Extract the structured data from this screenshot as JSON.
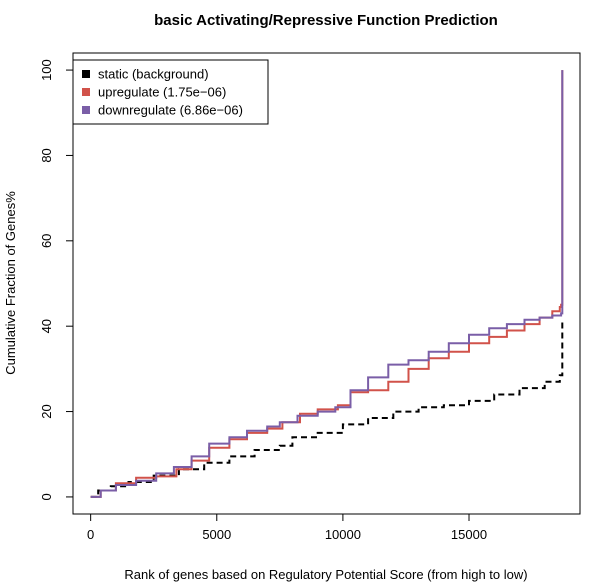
{
  "chart_data": {
    "type": "line",
    "title": "basic Activating/Repressive Function Prediction",
    "xlabel": "Rank of genes based on Regulatory Potential Score (from high to low)",
    "ylabel": "Cumulative Fraction of Genes%",
    "xlim": [
      -700,
      19400
    ],
    "ylim": [
      -4,
      104
    ],
    "x_ticks": [
      0,
      5000,
      10000,
      15000
    ],
    "y_ticks": [
      0,
      20,
      40,
      60,
      80,
      100
    ],
    "grid": false,
    "legend": "top-left",
    "series": [
      {
        "name": "static (background)",
        "color": "#000000",
        "dash": true,
        "x": [
          0,
          300,
          800,
          1500,
          2500,
          3500,
          4500,
          5500,
          6500,
          7500,
          8000,
          9000,
          10000,
          11000,
          12000,
          13000,
          14000,
          15000,
          16000,
          17000,
          18000,
          18600,
          18700
        ],
        "y": [
          0,
          1.5,
          2.5,
          3.5,
          5,
          6.5,
          8,
          9.5,
          11,
          12,
          14,
          15,
          17,
          18.5,
          20,
          21,
          21.5,
          22.5,
          24,
          25.5,
          27,
          28.5,
          41.5
        ]
      },
      {
        "name": "upregulate (1.75e−06)",
        "color": "#d1524a",
        "dash": false,
        "x": [
          0,
          400,
          1000,
          1800,
          2600,
          3400,
          4000,
          4700,
          5500,
          6200,
          7000,
          7600,
          8300,
          9000,
          9800,
          10300,
          11000,
          11800,
          12600,
          13400,
          14200,
          15000,
          15800,
          16500,
          17200,
          17800,
          18300,
          18600,
          18650,
          18700
        ],
        "y": [
          0,
          1.5,
          3.2,
          4.5,
          4.8,
          6.5,
          8.5,
          11.5,
          13.5,
          15,
          16,
          17.5,
          19.5,
          20.5,
          21.5,
          24.5,
          25,
          27,
          30,
          32.5,
          34,
          36,
          37.5,
          39,
          40.5,
          42,
          43.5,
          44.5,
          45,
          100
        ]
      },
      {
        "name": "downregulate (6.86e−06)",
        "color": "#7a5ea7",
        "dash": false,
        "x": [
          0,
          400,
          1000,
          1800,
          2600,
          3300,
          4000,
          4700,
          5500,
          6200,
          7000,
          7500,
          8200,
          9000,
          9700,
          10300,
          11000,
          11800,
          12600,
          13400,
          14200,
          15000,
          15800,
          16500,
          17200,
          17800,
          18300,
          18600,
          18650,
          18700
        ],
        "y": [
          0,
          1.5,
          2.8,
          3.8,
          5.5,
          7,
          9.5,
          12.5,
          14,
          15.5,
          16.5,
          17.5,
          19,
          20,
          21,
          25,
          28,
          31,
          32,
          34,
          36,
          38,
          39.5,
          40.5,
          41.5,
          42,
          42.5,
          42.5,
          43,
          100
        ]
      }
    ]
  }
}
